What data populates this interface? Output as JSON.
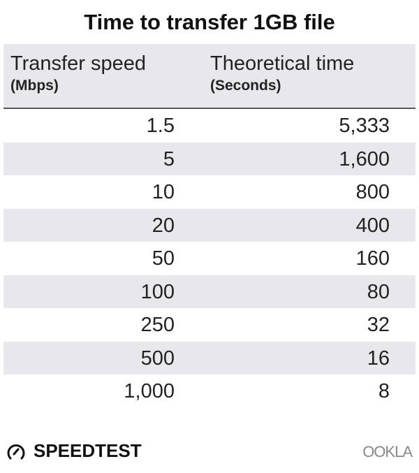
{
  "chart_data": {
    "type": "table",
    "title": "Time to transfer 1GB file",
    "columns": [
      {
        "label": "Transfer speed",
        "unit": "(Mbps)"
      },
      {
        "label": "Theoretical time",
        "unit": "(Seconds)"
      }
    ],
    "rows": [
      [
        "1.5",
        "5,333"
      ],
      [
        "5",
        "1,600"
      ],
      [
        "10",
        "800"
      ],
      [
        "20",
        "400"
      ],
      [
        "50",
        "160"
      ],
      [
        "100",
        "80"
      ],
      [
        "250",
        "32"
      ],
      [
        "500",
        "16"
      ],
      [
        "1,000",
        "8"
      ]
    ],
    "colors": {
      "header_bg": "#e8e8ec",
      "stripe": "#e8e8ec",
      "text": "#222222"
    }
  },
  "branding": {
    "speedtest": "SPEEDTEST",
    "ookla": "OOKLA",
    "speedtest_icon": "gauge-icon"
  }
}
